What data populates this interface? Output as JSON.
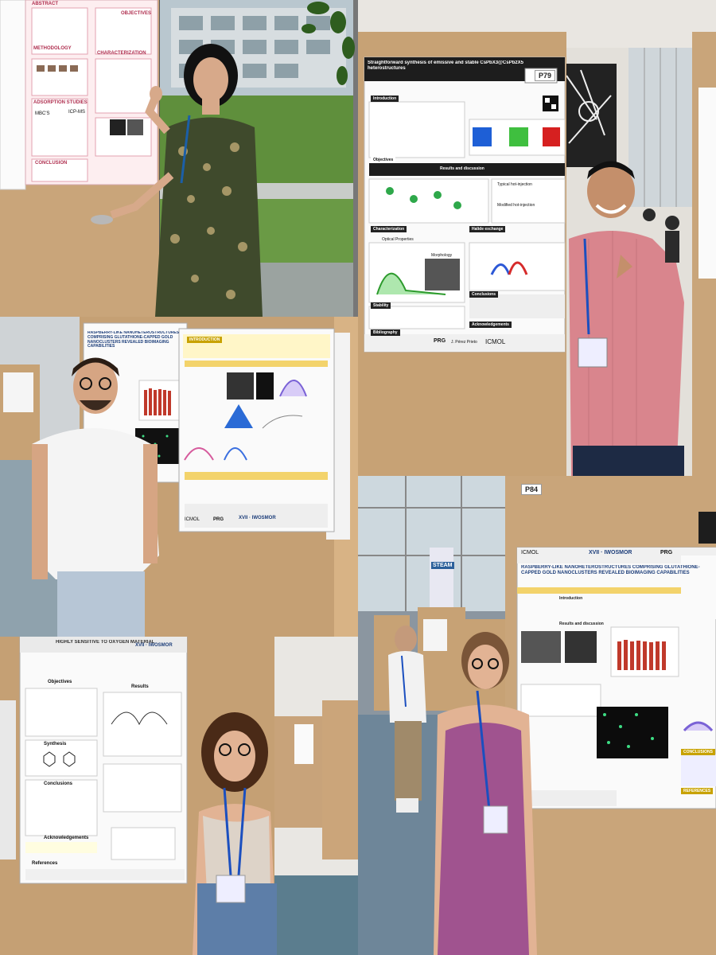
{
  "collage": {
    "description_panels": 5,
    "colors": {
      "cardboard": "#c9a57a",
      "poster_white": "#fafafa",
      "poster_dark": "#1d1d1d",
      "accent_red": "#c0392b"
    }
  },
  "panel_tl": {
    "poster_sections": [
      "ABSTRACT",
      "OBJECTIVES",
      "METHODOLOGY",
      "CHARACTERIZATION",
      "ADSORPTION STUDIES",
      "CONCLUSION"
    ],
    "poster_labels": [
      "ICP-MS",
      "MBC'S"
    ]
  },
  "panel_tr": {
    "board_number": "P79",
    "poster_title": "Straightforward synthesis of emissive and stable CsPbX3@CsPb2X5 heterostructures",
    "sections": [
      "Introduction",
      "Objectives",
      "Results and discussion",
      "Characterization",
      "Halide exchange",
      "Stability",
      "Bibliography",
      "Acknowledgements",
      "Conclusions"
    ],
    "labels": [
      "Optical Properties",
      "Morphology",
      "Modified hot-injection",
      "Typical hot-injection"
    ],
    "logos": [
      "PRG",
      "J. Pérez Prieto",
      "ICMOL"
    ]
  },
  "panel_ml": {
    "poster_title": "RASPBERRY-LIKE NANOHETEROSTRUCTURES COMPRISING GLUTATHIONE-CAPPED GOLD NANOCLUSTERS REVEALED BIOIMAGING CAPABILITIES",
    "sections": [
      "INTRODUCTION"
    ],
    "logos": [
      "XVII · IWOSMOR",
      "ICMOL",
      "PRG"
    ]
  },
  "panel_bl": {
    "poster_title": "HIGHLY SENSITIVE TO OXYGEN MATERIAL",
    "sections": [
      "Objectives",
      "Results",
      "Synthesis",
      "Conclusions",
      "Acknowledgements",
      "References"
    ],
    "logos": [
      "XVII · IWOSMOR"
    ]
  },
  "panel_br": {
    "board_number": "P84",
    "poster_title": "RASPBERRY-LIKE NANOHETEROSTRUCTURES COMPRISING GLUTATHIONE-CAPPED GOLD NANOCLUSTERS REVEALED BIOIMAGING CAPABILITIES",
    "sections": [
      "Introduction",
      "Results and discussion",
      "CONCLUSIONS",
      "REFERENCES"
    ],
    "logos": [
      "XVII · IWOSMOR",
      "ICMOL",
      "PRG"
    ],
    "banner": "STEAM"
  }
}
